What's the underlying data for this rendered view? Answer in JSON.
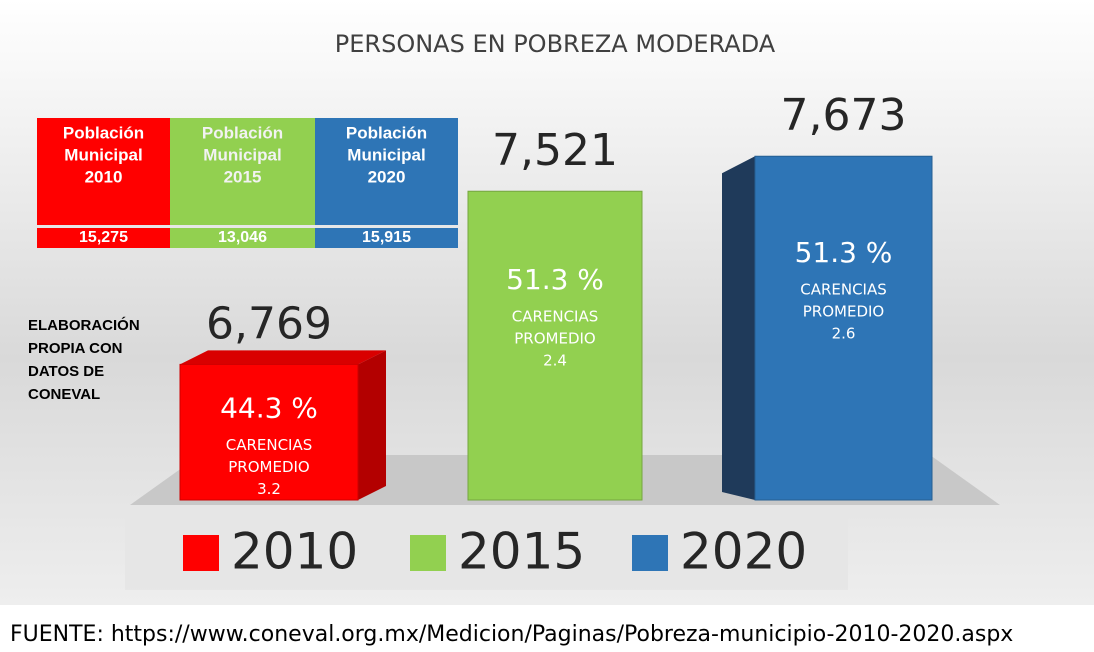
{
  "chart_data": {
    "type": "bar3d",
    "title": "PERSONAS EN POBREZA MODERADA",
    "categories": [
      "2010",
      "2015",
      "2020"
    ],
    "values": [
      6769,
      7521,
      7673
    ],
    "value_labels": [
      "6,769",
      "7,521",
      "7,673"
    ],
    "colors": [
      "#ff0000",
      "#92d050",
      "#2e75b6"
    ],
    "ylim": [
      6180,
      7800
    ],
    "bar_notes": [
      {
        "percent": 44.3,
        "percent_label": "44.3 %",
        "caption": [
          "CARENCIAS",
          "PROMEDIO"
        ],
        "average": 3.2
      },
      {
        "percent": 51.3,
        "percent_label": "51.3 %",
        "caption": [
          "CARENCIAS",
          "PROMEDIO"
        ],
        "average": 2.4
      },
      {
        "percent": 51.3,
        "percent_label": "51.3 %",
        "caption": [
          "CARENCIAS",
          "PROMEDIO"
        ],
        "average": 2.6
      }
    ],
    "table": {
      "headers": [
        [
          "Población",
          "Municipal",
          "2010"
        ],
        [
          "Población",
          "Municipal",
          "2015"
        ],
        [
          "Población",
          "Municipal",
          "2020"
        ]
      ],
      "values": [
        15275,
        13046,
        15915
      ],
      "value_labels": [
        "15,275",
        "13,046",
        "15,915"
      ]
    },
    "note": [
      "ELABORACIÓN",
      "PROPIA CON",
      "DATOS DE",
      "CONEVAL"
    ],
    "source": "FUENTE: https://www.coneval.org.mx/Medicion/Paginas/Pobreza-municipio-2010-2020.aspx"
  }
}
